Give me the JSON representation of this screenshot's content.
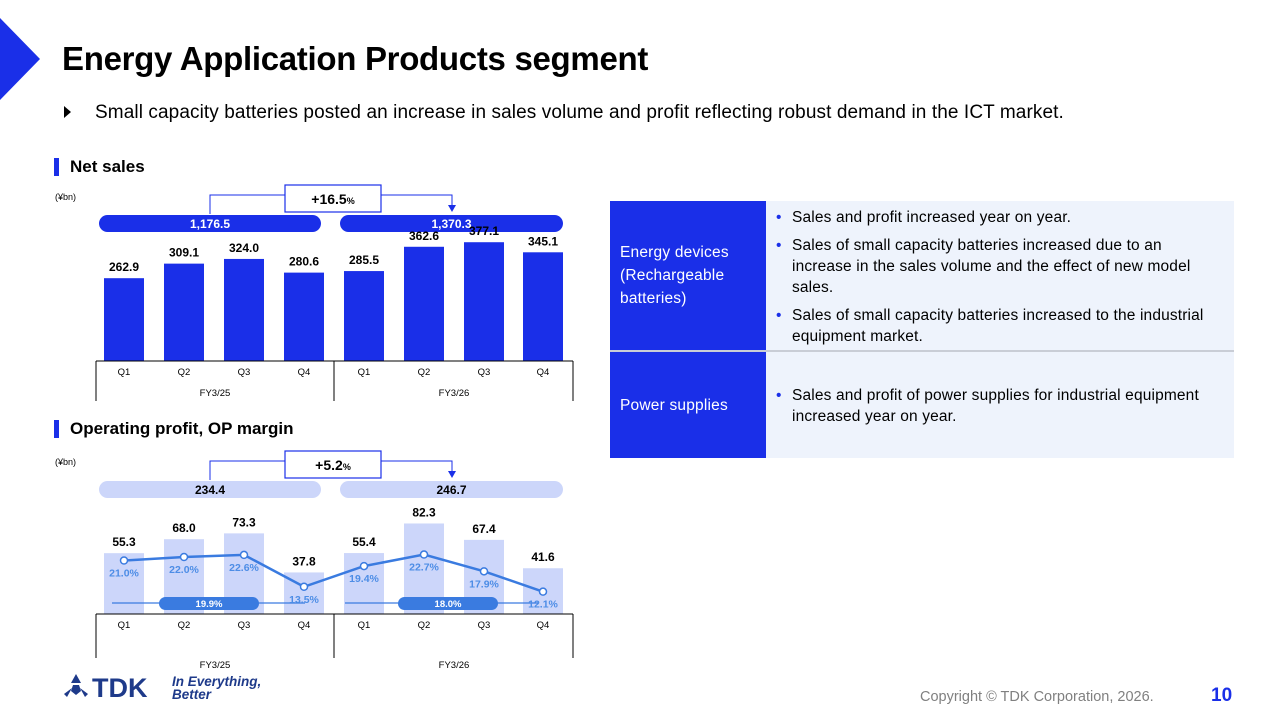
{
  "page": {
    "title": "Energy Application Products segment",
    "subtitle": "Small capacity batteries posted an increase in sales volume and profit reflecting robust demand in the ICT market.",
    "page_number": "10",
    "copyright": "Copyright  © TDK Corporation, 2026.",
    "logo": {
      "mark": "TDK",
      "tagline_1": "In Everything,",
      "tagline_2": "Better"
    },
    "colors": {
      "accent": "#1a2fe8",
      "light_bar": "#ccd6fa",
      "line": "#3a7be0",
      "pct_text": "#4d8de6",
      "panel_bg": "#eef3fc"
    }
  },
  "chart_data": [
    {
      "type": "bar",
      "title": "Net sales",
      "unit": "(¥bn)",
      "categories": [
        "Q1",
        "Q2",
        "Q3",
        "Q4",
        "Q1",
        "Q2",
        "Q3",
        "Q4"
      ],
      "groups": [
        "FY3/25",
        "FY3/26"
      ],
      "values": [
        262.9,
        309.1,
        324.0,
        280.6,
        285.5,
        362.6,
        377.1,
        345.1
      ],
      "value_labels": [
        "262.9",
        "309.1",
        "324.0",
        "280.6",
        "285.5",
        "362.6",
        "377.1",
        "345.1"
      ],
      "totals": [
        "1,176.5",
        "1,370.3"
      ],
      "growth": "+16.5",
      "growth_unit": "%",
      "ylim": [
        0,
        400
      ]
    },
    {
      "type": "bar",
      "title": "Operating profit, OP margin",
      "unit": "(¥bn)",
      "categories": [
        "Q1",
        "Q2",
        "Q3",
        "Q4",
        "Q1",
        "Q2",
        "Q3",
        "Q4"
      ],
      "groups": [
        "FY3/25",
        "FY3/26"
      ],
      "values": [
        55.3,
        68.0,
        73.3,
        37.8,
        55.4,
        82.3,
        67.4,
        41.6
      ],
      "value_labels": [
        "55.3",
        "68.0",
        "73.3",
        "37.8",
        "55.4",
        "82.3",
        "67.4",
        "41.6"
      ],
      "margin_pct": [
        21.0,
        22.0,
        22.6,
        13.5,
        19.4,
        22.7,
        17.9,
        12.1
      ],
      "margin_labels": [
        "21.0%",
        "22.0%",
        "22.6%",
        "13.5%",
        "19.4%",
        "22.7%",
        "17.9%",
        "12.1%"
      ],
      "avg_margin_labels": [
        "19.9%",
        "18.0%"
      ],
      "totals": [
        "234.4",
        "246.7"
      ],
      "growth": "+5.2",
      "growth_unit": "%",
      "ylim": [
        0,
        100
      ]
    }
  ],
  "segments": [
    {
      "label": "Energy devices (Rechargeable batteries)",
      "bullets": [
        "Sales and profit increased year on year.",
        "Sales of small capacity batteries increased due to an increase in the sales volume and the effect of new model sales.",
        "Sales of small capacity batteries increased to the industrial equipment market."
      ]
    },
    {
      "label": "Power supplies",
      "bullets": [
        "Sales and profit of power supplies for industrial equipment increased year on year."
      ]
    }
  ]
}
